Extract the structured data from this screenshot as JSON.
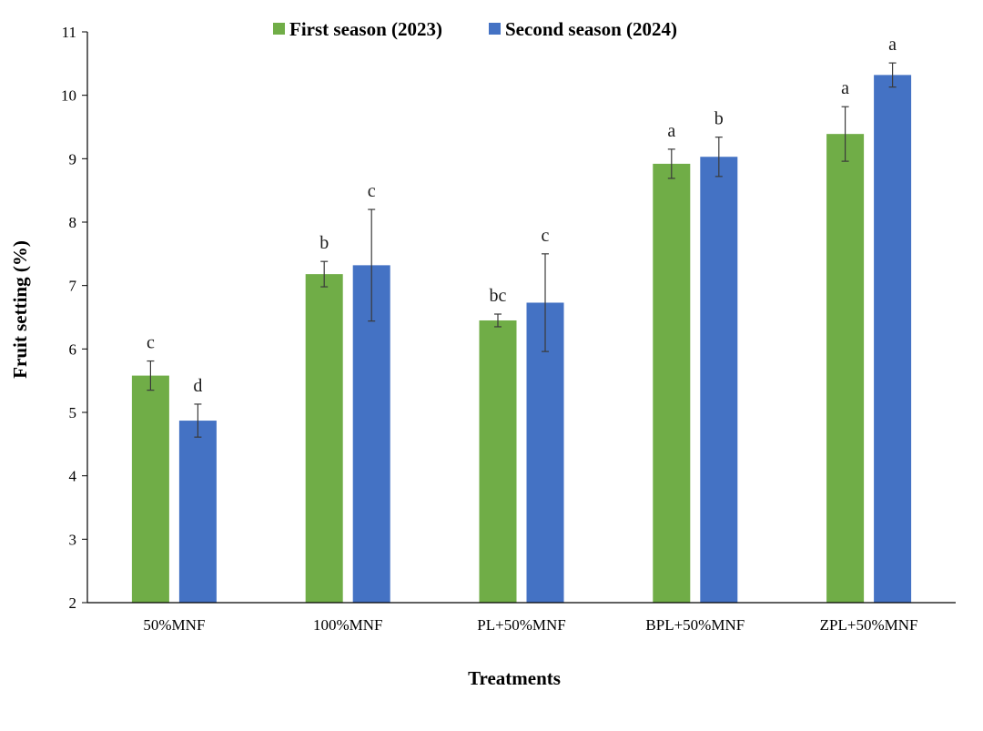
{
  "chart_data": {
    "type": "bar",
    "xlabel": "Treatments",
    "ylabel": "Fruit setting (%)",
    "ylim": [
      2,
      11
    ],
    "yticks": [
      2,
      3,
      4,
      5,
      6,
      7,
      8,
      9,
      10,
      11
    ],
    "grid": false,
    "legend_position": "top-center",
    "categories": [
      "50%MNF",
      "100%MNF",
      "PL+50%MNF",
      "BPL+50%MNF",
      "ZPL+50%MNF"
    ],
    "series": [
      {
        "name": "First season (2023)",
        "color": "#70ad47",
        "values": [
          5.58,
          7.18,
          6.45,
          8.92,
          9.39
        ],
        "errors": [
          0.23,
          0.2,
          0.1,
          0.23,
          0.43
        ],
        "labels": [
          "c",
          "b",
          "bc",
          "a",
          "a"
        ]
      },
      {
        "name": "Second season (2024)",
        "color": "#4472c4",
        "values": [
          4.87,
          7.32,
          6.73,
          9.03,
          10.32
        ],
        "errors": [
          0.26,
          0.88,
          0.77,
          0.31,
          0.19
        ],
        "labels": [
          "d",
          "c",
          "c",
          "b",
          "a"
        ]
      }
    ]
  }
}
